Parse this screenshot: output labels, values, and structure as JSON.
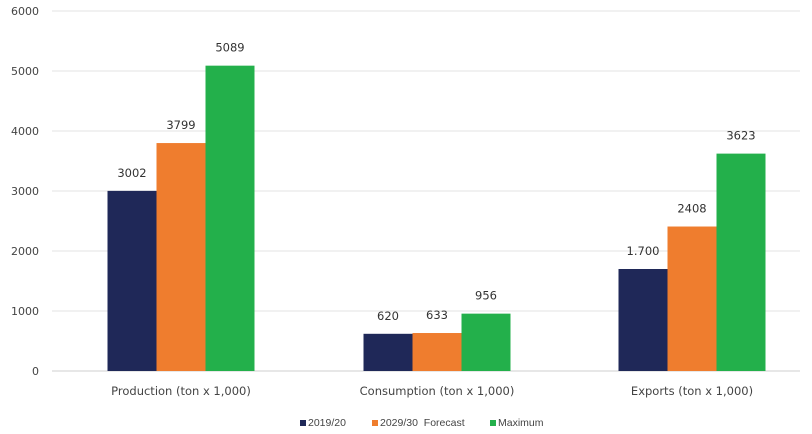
{
  "chart_data": {
    "type": "bar",
    "title": "",
    "xlabel": "",
    "ylabel": "",
    "ylim": [
      0,
      6000
    ],
    "yticks": [
      "0",
      "1000",
      "2000",
      "3000",
      "4000",
      "5000",
      "6000"
    ],
    "grid": true,
    "legend_position": "bottom",
    "categories": [
      "Production (ton x 1,000)",
      "Consumption (ton x 1,000)",
      "Exports (ton x 1,000)"
    ],
    "series": [
      {
        "name": "2019/20",
        "color": "#1f2858",
        "values": [
          3002,
          620,
          1700
        ],
        "labels": [
          "3002",
          "620",
          "1.700"
        ]
      },
      {
        "name": "2029/30  Forecast",
        "color": "#ef7d2e",
        "values": [
          3799,
          633,
          2408
        ],
        "labels": [
          "3799",
          "633",
          "2408"
        ]
      },
      {
        "name": "Maximum",
        "color": "#23b04b",
        "values": [
          5089,
          956,
          3623
        ],
        "labels": [
          "5089",
          "956",
          "3623"
        ]
      }
    ]
  }
}
